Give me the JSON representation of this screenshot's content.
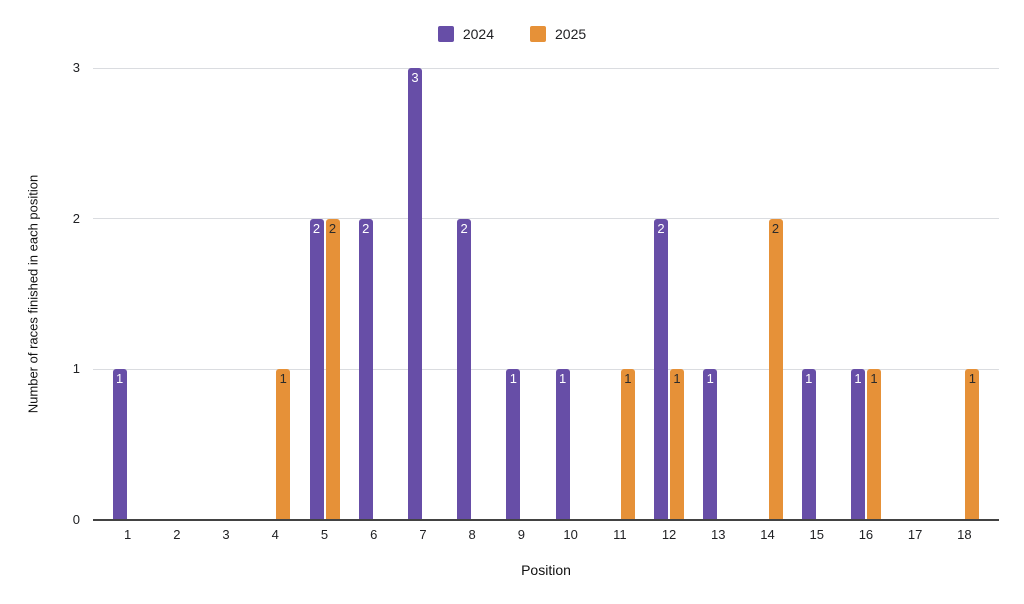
{
  "chart_data": {
    "type": "bar",
    "categories": [
      "1",
      "2",
      "3",
      "4",
      "5",
      "6",
      "7",
      "8",
      "9",
      "10",
      "11",
      "12",
      "13",
      "14",
      "15",
      "16",
      "17",
      "18"
    ],
    "series": [
      {
        "name": "2024",
        "color": "#674EA7",
        "label_color": "#FFFFFF",
        "values": [
          1,
          0,
          0,
          0,
          2,
          2,
          3,
          2,
          1,
          1,
          0,
          2,
          1,
          0,
          1,
          1,
          0,
          0
        ]
      },
      {
        "name": "2025",
        "color": "#E69138",
        "label_color": "#2B2B2B",
        "values": [
          0,
          0,
          0,
          1,
          2,
          0,
          0,
          0,
          0,
          0,
          1,
          1,
          0,
          2,
          0,
          1,
          0,
          1
        ]
      }
    ],
    "title": "",
    "xlabel": "Position",
    "ylabel": "Number of races finished in each position",
    "yticks": [
      0,
      1,
      2,
      3
    ],
    "ylim": [
      0,
      3
    ],
    "grid": true,
    "legend_position": "top",
    "show_value_labels": true
  },
  "colors": {
    "background": "#FFFFFF",
    "grid": "#DADCE0",
    "axis": "#424242",
    "tick_text": "#202124"
  }
}
